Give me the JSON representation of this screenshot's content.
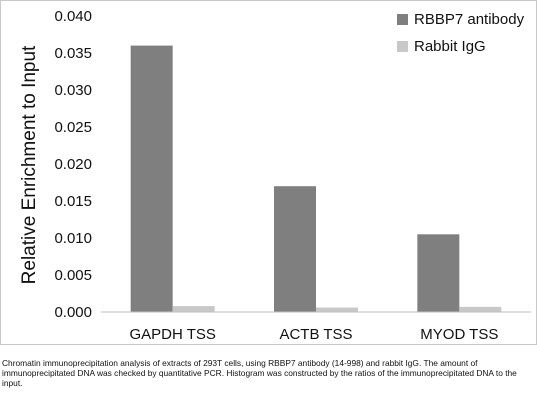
{
  "chart_data": {
    "type": "bar",
    "categories": [
      "GAPDH TSS",
      "ACTB TSS",
      "MYOD TSS"
    ],
    "series": [
      {
        "name": "RBBP7 antibody",
        "color": "#7f7f7f",
        "values": [
          0.036,
          0.017,
          0.0105
        ]
      },
      {
        "name": "Rabbit IgG",
        "color": "#c8c8c8",
        "values": [
          0.0008,
          0.0006,
          0.0007
        ]
      }
    ],
    "title": "",
    "xlabel": "",
    "ylabel": "Relative Enrichment to Input",
    "ylim": [
      0,
      0.04
    ],
    "yticks": [
      0,
      0.005,
      0.01,
      0.015,
      0.02,
      0.025,
      0.03,
      0.035,
      0.04
    ],
    "ytick_labels": [
      "0.000",
      "0.005",
      "0.010",
      "0.015",
      "0.020",
      "0.025",
      "0.030",
      "0.035",
      "0.040"
    ],
    "grid": false,
    "legend": "top-right"
  },
  "caption": "Chromatin immunoprecipitation analysis of extracts of 293T cells, using RBBP7 antibody (14-998) and rabbit IgG. The amount of immunoprecipitated DNA was checked by quantitative PCR. Histogram was constructed by the ratios of the immunoprecipitated DNA to the input."
}
